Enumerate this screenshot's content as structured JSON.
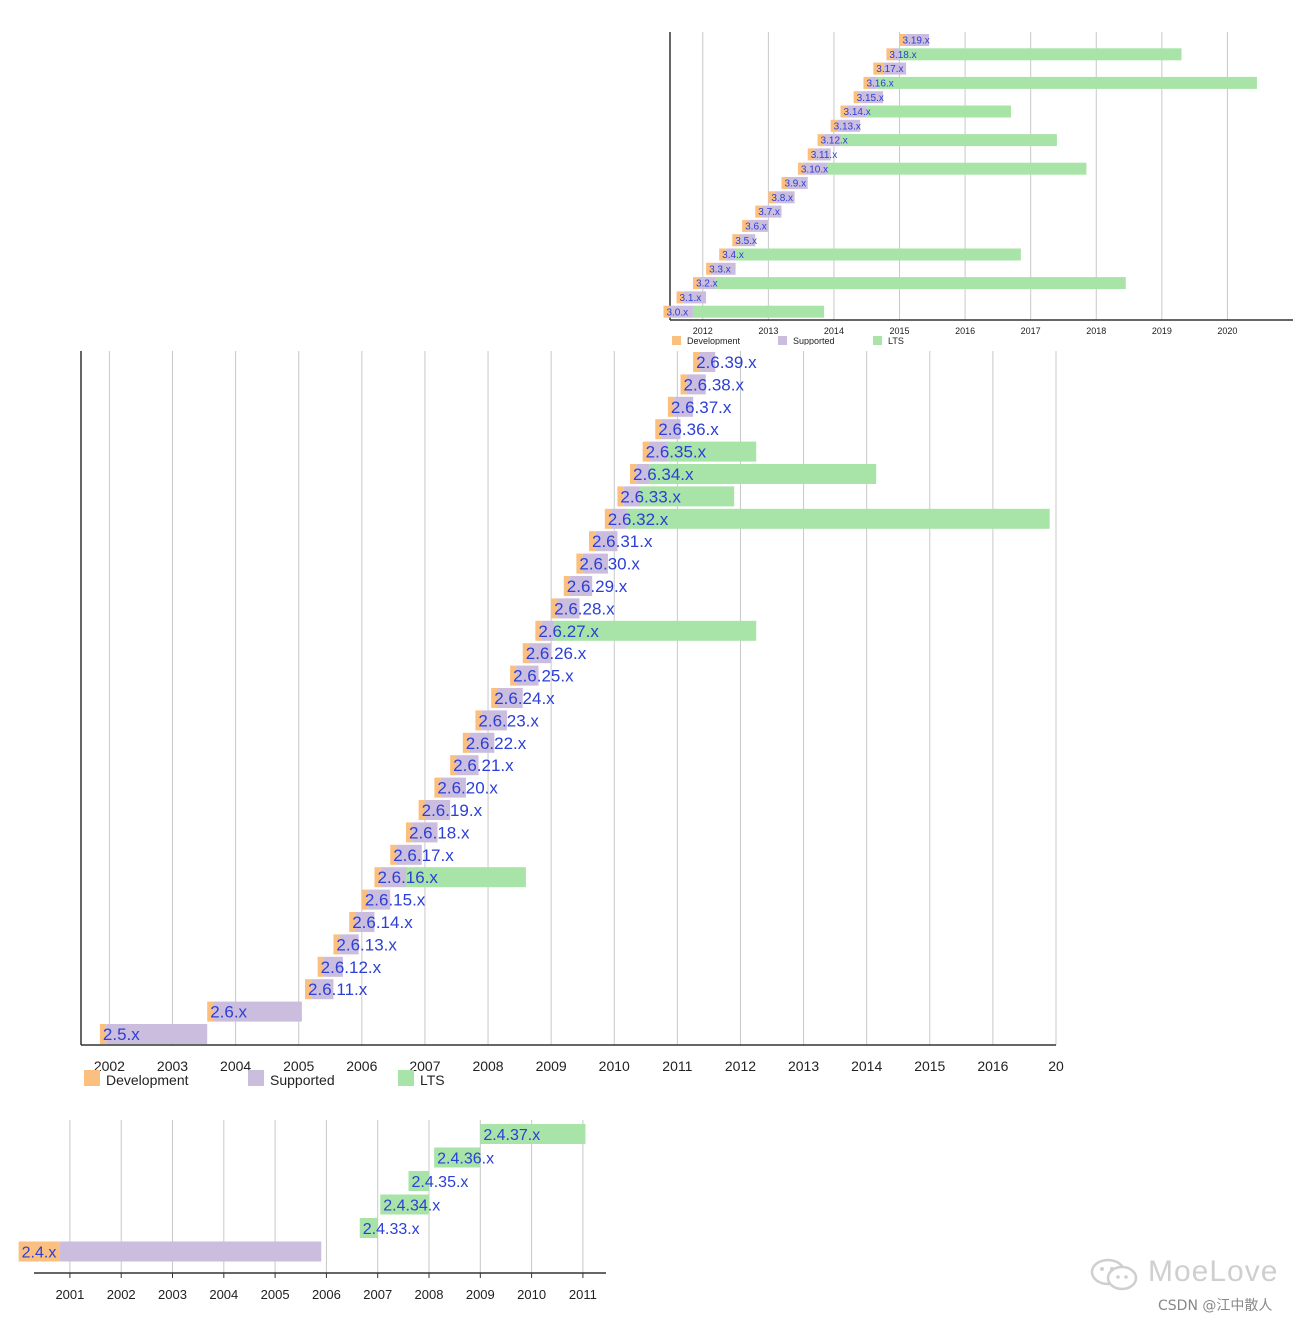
{
  "colors": {
    "development": "#fbbf7f",
    "supported": "#cbbddd",
    "lts": "#a8e3a8",
    "label": "#2c3fd6",
    "grid": "#c8c8c8",
    "axis": "#333333"
  },
  "chart_data": [
    {
      "type": "bar",
      "orientation": "horizontal-timeline",
      "series_names": [
        "Development",
        "Supported",
        "LTS"
      ],
      "legend": [
        "Development",
        "Supported",
        "LTS"
      ],
      "legend_position": "bottom-left",
      "x_ticks": [
        "2012",
        "2013",
        "2014",
        "2015",
        "2016",
        "2017",
        "2018",
        "2019",
        "2020"
      ],
      "xlim": [
        2011.5,
        2021.0
      ],
      "grid": true,
      "rows": [
        {
          "label": "3.19.x",
          "dev": [
            2015.0,
            2015.1
          ],
          "sup": [
            2015.1,
            2015.45
          ],
          "lts": null
        },
        {
          "label": "3.18.x",
          "dev": [
            2014.8,
            2014.9
          ],
          "sup": [
            2014.9,
            2015.0
          ],
          "lts": [
            2015.0,
            2019.3
          ]
        },
        {
          "label": "3.17.x",
          "dev": [
            2014.6,
            2014.75
          ],
          "sup": [
            2014.75,
            2015.1
          ],
          "lts": null
        },
        {
          "label": "3.16.x",
          "dev": [
            2014.45,
            2014.55
          ],
          "sup": [
            2014.55,
            2014.65
          ],
          "lts": [
            2014.65,
            2020.45
          ]
        },
        {
          "label": "3.15.x",
          "dev": [
            2014.3,
            2014.4
          ],
          "sup": [
            2014.4,
            2014.75
          ],
          "lts": null
        },
        {
          "label": "3.14.x",
          "dev": [
            2014.1,
            2014.2
          ],
          "sup": [
            2014.2,
            2014.5
          ],
          "lts": [
            2014.5,
            2016.7
          ]
        },
        {
          "label": "3.13.x",
          "dev": [
            2013.95,
            2014.05
          ],
          "sup": [
            2014.05,
            2014.4
          ],
          "lts": null
        },
        {
          "label": "3.12.x",
          "dev": [
            2013.75,
            2013.85
          ],
          "sup": [
            2013.85,
            2014.1
          ],
          "lts": [
            2014.1,
            2017.4
          ]
        },
        {
          "label": "3.11.x",
          "dev": [
            2013.6,
            2013.7
          ],
          "sup": [
            2013.7,
            2013.95
          ],
          "lts": null
        },
        {
          "label": "3.10.x",
          "dev": [
            2013.45,
            2013.55
          ],
          "sup": [
            2013.55,
            2013.9
          ],
          "lts": [
            2013.9,
            2017.85
          ]
        },
        {
          "label": "3.9.x",
          "dev": [
            2013.2,
            2013.3
          ],
          "sup": [
            2013.3,
            2013.6
          ],
          "lts": null
        },
        {
          "label": "3.8.x",
          "dev": [
            2013.0,
            2013.1
          ],
          "sup": [
            2013.1,
            2013.4
          ],
          "lts": null
        },
        {
          "label": "3.7.x",
          "dev": [
            2012.8,
            2012.9
          ],
          "sup": [
            2012.9,
            2013.2
          ],
          "lts": null
        },
        {
          "label": "3.6.x",
          "dev": [
            2012.6,
            2012.7
          ],
          "sup": [
            2012.7,
            2013.0
          ],
          "lts": null
        },
        {
          "label": "3.5.x",
          "dev": [
            2012.45,
            2012.55
          ],
          "sup": [
            2012.55,
            2012.8
          ],
          "lts": null
        },
        {
          "label": "3.4.x",
          "dev": [
            2012.25,
            2012.35
          ],
          "sup": [
            2012.35,
            2012.5
          ],
          "lts": [
            2012.5,
            2016.85
          ]
        },
        {
          "label": "3.3.x",
          "dev": [
            2012.05,
            2012.15
          ],
          "sup": [
            2012.15,
            2012.5
          ],
          "lts": null
        },
        {
          "label": "3.2.x",
          "dev": [
            2011.85,
            2011.95
          ],
          "sup": [
            2011.95,
            2012.2
          ],
          "lts": [
            2012.2,
            2018.45
          ]
        },
        {
          "label": "3.1.x",
          "dev": [
            2011.6,
            2011.7
          ],
          "sup": [
            2011.7,
            2012.05
          ],
          "lts": null
        },
        {
          "label": "3.0.x",
          "dev": [
            2011.4,
            2011.5
          ],
          "sup": [
            2011.5,
            2011.85
          ],
          "lts": [
            2011.85,
            2013.85
          ]
        }
      ]
    },
    {
      "type": "bar",
      "orientation": "horizontal-timeline",
      "series_names": [
        "Development",
        "Supported",
        "LTS"
      ],
      "legend": [
        "Development",
        "Supported",
        "LTS"
      ],
      "legend_position": "bottom-left",
      "x_ticks": [
        "2002",
        "2003",
        "2004",
        "2005",
        "2006",
        "2007",
        "2008",
        "2009",
        "2010",
        "2011",
        "2012",
        "2013",
        "2014",
        "2015",
        "2016",
        "20"
      ],
      "xlim": [
        2001.55,
        2017.0
      ],
      "grid": true,
      "rows": [
        {
          "label": "2.6.39.x",
          "dev": [
            2011.25,
            2011.35
          ],
          "sup": [
            2011.35,
            2011.6
          ],
          "lts": null
        },
        {
          "label": "2.6.38.x",
          "dev": [
            2011.05,
            2011.15
          ],
          "sup": [
            2011.15,
            2011.45
          ],
          "lts": null
        },
        {
          "label": "2.6.37.x",
          "dev": [
            2010.85,
            2010.95
          ],
          "sup": [
            2010.95,
            2011.25
          ],
          "lts": null
        },
        {
          "label": "2.6.36.x",
          "dev": [
            2010.65,
            2010.75
          ],
          "sup": [
            2010.75,
            2011.05
          ],
          "lts": null
        },
        {
          "label": "2.6.35.x",
          "dev": [
            2010.45,
            2010.55
          ],
          "sup": [
            2010.55,
            2010.85
          ],
          "lts": [
            2010.85,
            2012.25
          ]
        },
        {
          "label": "2.6.34.x",
          "dev": [
            2010.25,
            2010.35
          ],
          "sup": [
            2010.35,
            2010.55
          ],
          "lts": [
            2010.55,
            2014.15
          ]
        },
        {
          "label": "2.6.33.x",
          "dev": [
            2010.05,
            2010.15
          ],
          "sup": [
            2010.15,
            2010.4
          ],
          "lts": [
            2010.4,
            2011.9
          ]
        },
        {
          "label": "2.6.32.x",
          "dev": [
            2009.85,
            2009.95
          ],
          "sup": [
            2009.95,
            2010.2
          ],
          "lts": [
            2010.2,
            2016.9
          ]
        },
        {
          "label": "2.6.31.x",
          "dev": [
            2009.6,
            2009.7
          ],
          "sup": [
            2009.7,
            2010.05
          ],
          "lts": null
        },
        {
          "label": "2.6.30.x",
          "dev": [
            2009.4,
            2009.5
          ],
          "sup": [
            2009.5,
            2009.9
          ],
          "lts": null
        },
        {
          "label": "2.6.29.x",
          "dev": [
            2009.2,
            2009.3
          ],
          "sup": [
            2009.3,
            2009.65
          ],
          "lts": null
        },
        {
          "label": "2.6.28.x",
          "dev": [
            2009.0,
            2009.1
          ],
          "sup": [
            2009.1,
            2009.45
          ],
          "lts": null
        },
        {
          "label": "2.6.27.x",
          "dev": [
            2008.75,
            2008.85
          ],
          "sup": [
            2008.85,
            2009.05
          ],
          "lts": [
            2009.05,
            2012.25
          ]
        },
        {
          "label": "2.6.26.x",
          "dev": [
            2008.55,
            2008.65
          ],
          "sup": [
            2008.65,
            2009.0
          ],
          "lts": null
        },
        {
          "label": "2.6.25.x",
          "dev": [
            2008.35,
            2008.45
          ],
          "sup": [
            2008.45,
            2008.8
          ],
          "lts": null
        },
        {
          "label": "2.6.24.x",
          "dev": [
            2008.05,
            2008.15
          ],
          "sup": [
            2008.15,
            2008.55
          ],
          "lts": null
        },
        {
          "label": "2.6.23.x",
          "dev": [
            2007.8,
            2007.9
          ],
          "sup": [
            2007.9,
            2008.3
          ],
          "lts": null
        },
        {
          "label": "2.6.22.x",
          "dev": [
            2007.6,
            2007.7
          ],
          "sup": [
            2007.7,
            2008.1
          ],
          "lts": null
        },
        {
          "label": "2.6.21.x",
          "dev": [
            2007.4,
            2007.5
          ],
          "sup": [
            2007.5,
            2007.85
          ],
          "lts": null
        },
        {
          "label": "2.6.20.x",
          "dev": [
            2007.15,
            2007.25
          ],
          "sup": [
            2007.25,
            2007.65
          ],
          "lts": null
        },
        {
          "label": "2.6.19.x",
          "dev": [
            2006.9,
            2007.0
          ],
          "sup": [
            2007.0,
            2007.4
          ],
          "lts": null
        },
        {
          "label": "2.6.18.x",
          "dev": [
            2006.7,
            2006.8
          ],
          "sup": [
            2006.8,
            2007.2
          ],
          "lts": null
        },
        {
          "label": "2.6.17.x",
          "dev": [
            2006.45,
            2006.55
          ],
          "sup": [
            2006.55,
            2006.95
          ],
          "lts": null
        },
        {
          "label": "2.6.16.x",
          "dev": [
            2006.2,
            2006.3
          ],
          "sup": [
            2006.3,
            2006.7
          ],
          "lts": [
            2006.7,
            2008.6
          ]
        },
        {
          "label": "2.6.15.x",
          "dev": [
            2006.0,
            2006.1
          ],
          "sup": [
            2006.1,
            2006.45
          ],
          "lts": null
        },
        {
          "label": "2.6.14.x",
          "dev": [
            2005.8,
            2005.9
          ],
          "sup": [
            2005.9,
            2006.2
          ],
          "lts": null
        },
        {
          "label": "2.6.13.x",
          "dev": [
            2005.55,
            2005.65
          ],
          "sup": [
            2005.65,
            2005.95
          ],
          "lts": null
        },
        {
          "label": "2.6.12.x",
          "dev": [
            2005.3,
            2005.4
          ],
          "sup": [
            2005.4,
            2005.7
          ],
          "lts": null
        },
        {
          "label": "2.6.11.x",
          "dev": [
            2005.1,
            2005.2
          ],
          "sup": [
            2005.2,
            2005.55
          ],
          "lts": null
        },
        {
          "label": "2.6.x",
          "dev": [
            2003.55,
            2003.65
          ],
          "sup": [
            2003.65,
            2005.05
          ],
          "lts": null
        },
        {
          "label": "2.5.x",
          "dev": [
            2001.85,
            2001.95
          ],
          "sup": [
            2001.95,
            2003.55
          ],
          "lts": null
        }
      ]
    },
    {
      "type": "bar",
      "orientation": "horizontal-timeline",
      "series_names": [
        "Development",
        "Supported",
        "LTS"
      ],
      "x_ticks": [
        "2001",
        "2002",
        "2003",
        "2004",
        "2005",
        "2006",
        "2007",
        "2008",
        "2009",
        "2010",
        "2011"
      ],
      "xlim": [
        2000.3,
        2011.45
      ],
      "grid": true,
      "rows": [
        {
          "label": "2.4.37.x",
          "dev": null,
          "sup": null,
          "lts": [
            2009.0,
            2011.05
          ]
        },
        {
          "label": "2.4.36.x",
          "dev": null,
          "sup": null,
          "lts": [
            2008.1,
            2009.0
          ]
        },
        {
          "label": "2.4.35.x",
          "dev": null,
          "sup": null,
          "lts": [
            2007.6,
            2008.0
          ]
        },
        {
          "label": "2.4.34.x",
          "dev": null,
          "sup": null,
          "lts": [
            2007.05,
            2008.0
          ]
        },
        {
          "label": "2.4.33.x",
          "dev": null,
          "sup": null,
          "lts": [
            2006.65,
            2007.0
          ]
        },
        {
          "label": "2.4.x",
          "dev": [
            2000.0,
            2000.8
          ],
          "sup": [
            2000.8,
            2005.9
          ],
          "lts": null
        }
      ]
    }
  ],
  "watermark": {
    "logo_text": "MoeLove",
    "credit_text": "CSDN @江中散人"
  }
}
